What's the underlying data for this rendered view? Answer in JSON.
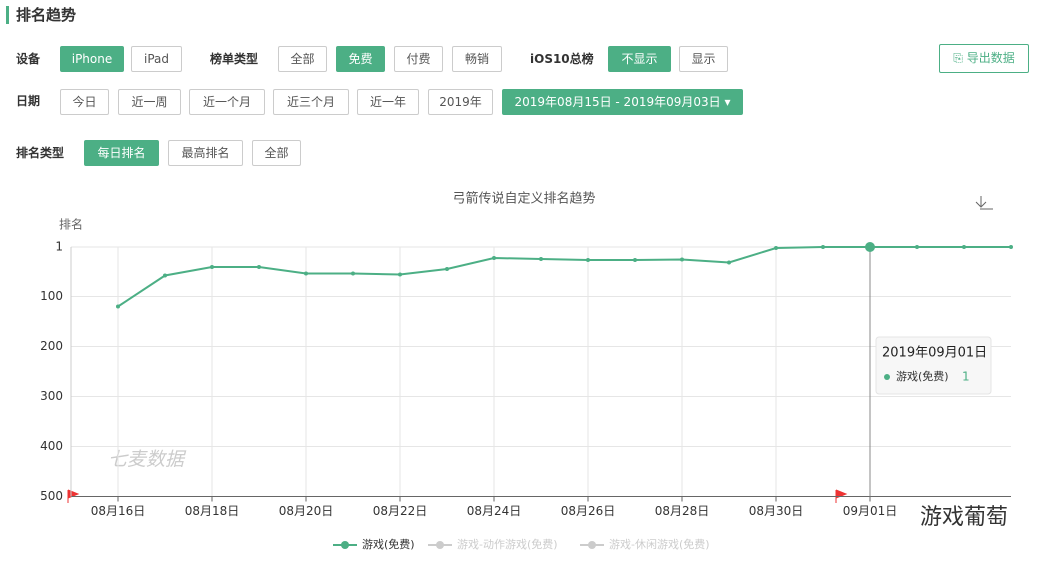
{
  "header": {
    "title": "排名趋势"
  },
  "filters": {
    "device": {
      "label": "设备",
      "options": [
        "iPhone",
        "iPad"
      ]
    },
    "list_type": {
      "label": "榜单类型",
      "options": [
        "全部",
        "免费",
        "付费",
        "畅销"
      ]
    },
    "ios10": {
      "label": "iOS10总榜",
      "options": [
        "不显示",
        "显示"
      ]
    },
    "export": "导出数据",
    "date": {
      "label": "日期",
      "options": [
        "今日",
        "近一周",
        "近一个月",
        "近三个月",
        "近一年",
        "2019年"
      ],
      "range": "2019年08月15日 - 2019年09月03日"
    },
    "rank_type": {
      "label": "排名类型",
      "options": [
        "每日排名",
        "最高排名",
        "全部"
      ]
    }
  },
  "chart_data": {
    "type": "line",
    "title": "弓箭传说自定义排名趋势",
    "y_label": "排名",
    "y_inverted": true,
    "categories": [
      null,
      "08月16日",
      null,
      "08月18日",
      null,
      "08月20日",
      null,
      "08月22日",
      null,
      "08月24日",
      null,
      "08月26日",
      null,
      "08月28日",
      null,
      "08月30日",
      null,
      "09月01日",
      null,
      null,
      null
    ],
    "series": [
      {
        "name": "游戏(免费)",
        "color": "#4caf85",
        "values": [
          null,
          120,
          58,
          41,
          41,
          54,
          54,
          56,
          45,
          23,
          25,
          27,
          27,
          26,
          32,
          3,
          1,
          1,
          1,
          1,
          1
        ]
      },
      {
        "name": "游戏-动作游戏(免费)",
        "color": "#cccccc"
      },
      {
        "name": "游戏-休闲游戏(免费)",
        "color": "#cccccc"
      }
    ],
    "ylim": [
      1,
      500
    ],
    "yticks": [
      1,
      100,
      200,
      300,
      400,
      500
    ],
    "grid": true,
    "tooltip": {
      "title": "2019年09月01日",
      "series": "游戏(免费)",
      "value": 1
    }
  },
  "watermarks": [
    "七麦数据",
    "游戏葡萄"
  ]
}
